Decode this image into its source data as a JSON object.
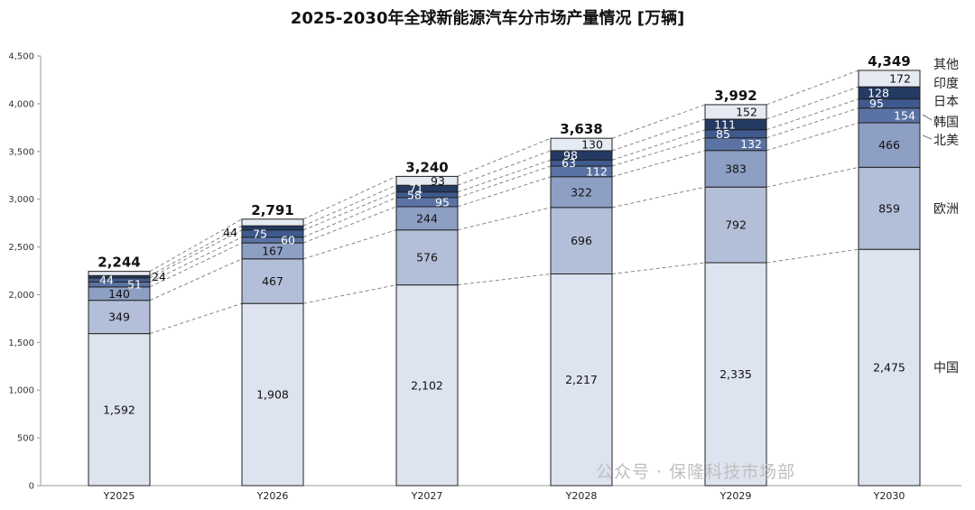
{
  "chart_data": {
    "type": "bar",
    "stacked": true,
    "title": "2025-2030年全球新能源汽车分市场产量情况 [万辆]",
    "categories": [
      "Y2025",
      "Y2026",
      "Y2027",
      "Y2028",
      "Y2029",
      "Y2030"
    ],
    "ylim": [
      0,
      4500
    ],
    "yticks": [
      "0",
      "500",
      "1,000",
      "1,500",
      "2,000",
      "2,500",
      "3,000",
      "3,500",
      "4,000",
      "4,500"
    ],
    "series": [
      {
        "name": "中国",
        "values": [
          1592,
          1908,
          2102,
          2217,
          2335,
          2475
        ],
        "labels": [
          "1,592",
          "1,908",
          "2,102",
          "2,217",
          "2,335",
          "2,475"
        ],
        "color": "#dde3ef"
      },
      {
        "name": "欧洲",
        "values": [
          349,
          467,
          576,
          696,
          792,
          859
        ],
        "labels": [
          "349",
          "467",
          "576",
          "696",
          "792",
          "859"
        ],
        "color": "#b3bfd8"
      },
      {
        "name": "北美",
        "values": [
          140,
          167,
          244,
          322,
          383,
          466
        ],
        "labels": [
          "140",
          "167",
          "244",
          "322",
          "383",
          "466"
        ],
        "color": "#8e9fc4"
      },
      {
        "name": "韩国",
        "values": [
          51,
          60,
          95,
          112,
          132,
          154
        ],
        "labels": [
          "51",
          "60",
          "95",
          "112",
          "132",
          "154"
        ],
        "color": "#5b73a4"
      },
      {
        "name": "日本",
        "values": [
          44,
          75,
          58,
          63,
          85,
          95
        ],
        "labels": [
          "44",
          "75",
          "58",
          "63",
          "85",
          "95"
        ],
        "color": "#3f5a8e"
      },
      {
        "name": "印度",
        "values": [
          24,
          44,
          71,
          98,
          111,
          128
        ],
        "labels": [
          "24",
          "44",
          "71",
          "98",
          "111",
          "128"
        ],
        "color": "#243a62"
      },
      {
        "name": "其他",
        "values": [
          44,
          70,
          93,
          130,
          152,
          172
        ],
        "labels": [
          "",
          "",
          "93",
          "130",
          "152",
          "172"
        ],
        "color": "#e6eaf2"
      }
    ],
    "totals": [
      "2,244",
      "2,791",
      "3,240",
      "3,638",
      "3,992",
      "4,349"
    ],
    "legend_position": "right",
    "connector_lines": true
  },
  "watermark": "公众号 · 保隆科技市场部"
}
